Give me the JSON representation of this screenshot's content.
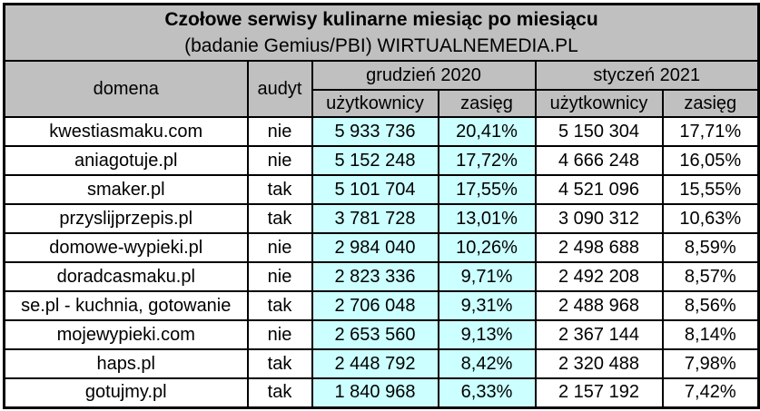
{
  "columns": {
    "domain": "domena",
    "audit": "audyt",
    "group_december": "grudzień 2020",
    "group_january": "styczeń 2021",
    "users": "użytkownicy",
    "reach": "zasięg"
  },
  "colors": {
    "header_bg": "#c0c0c0",
    "december_highlight_bg": "#ccffff",
    "row_bg": "#ffffff",
    "border": "#000000",
    "text": "#000000"
  },
  "chart_data": {
    "type": "table",
    "title": "Czołowe serwisy kulinarne miesiąc po miesiącu",
    "subtitle": "(badanie Gemius/PBI) WIRTUALNEMEDIA.PL",
    "column_headers": [
      "domena",
      "audyt",
      "grudzień 2020 użytkownicy",
      "grudzień 2020 zasięg",
      "styczeń 2021 użytkownicy",
      "styczeń 2021 zasięg"
    ],
    "rows": [
      [
        "kwestiasmaku.com",
        "nie",
        "5 933 736",
        "20,41%",
        "5 150 304",
        "17,71%"
      ],
      [
        "aniagotuje.pl",
        "nie",
        "5 152 248",
        "17,72%",
        "4 666 248",
        "16,05%"
      ],
      [
        "smaker.pl",
        "tak",
        "5 101 704",
        "17,55%",
        "4 521 096",
        "15,55%"
      ],
      [
        "przyslijprzepis.pl",
        "tak",
        "3 781 728",
        "13,01%",
        "3 090 312",
        "10,63%"
      ],
      [
        "domowe-wypieki.pl",
        "nie",
        "2 984 040",
        "10,26%",
        "2 498 688",
        "8,59%"
      ],
      [
        "doradcasmaku.pl",
        "nie",
        "2 823 336",
        "9,71%",
        "2 492 208",
        "8,57%"
      ],
      [
        "se.pl - kuchnia, gotowanie",
        "tak",
        "2 706 048",
        "9,31%",
        "2 488 968",
        "8,56%"
      ],
      [
        "mojewypieki.com",
        "nie",
        "2 653 560",
        "9,13%",
        "2 367 144",
        "8,14%"
      ],
      [
        "haps.pl",
        "tak",
        "2 448 792",
        "8,42%",
        "2 320 488",
        "7,98%"
      ],
      [
        "gotujmy.pl",
        "tak",
        "1 840 968",
        "6,33%",
        "2 157 192",
        "7,42%"
      ]
    ],
    "categories": [
      "kwestiasmaku.com",
      "aniagotuje.pl",
      "smaker.pl",
      "przyslijprzepis.pl",
      "domowe-wypieki.pl",
      "doradcasmaku.pl",
      "se.pl - kuchnia, gotowanie",
      "mojewypieki.com",
      "haps.pl",
      "gotujmy.pl"
    ],
    "audit_flags": [
      "nie",
      "nie",
      "tak",
      "tak",
      "nie",
      "nie",
      "tak",
      "nie",
      "tak",
      "tak"
    ],
    "series": [
      {
        "name": "grudzień 2020 użytkownicy",
        "values": [
          5933736,
          5152248,
          5101704,
          3781728,
          2984040,
          2823336,
          2706048,
          2653560,
          2448792,
          1840968
        ]
      },
      {
        "name": "grudzień 2020 zasięg (%)",
        "values": [
          20.41,
          17.72,
          17.55,
          13.01,
          10.26,
          9.71,
          9.31,
          9.13,
          8.42,
          6.33
        ]
      },
      {
        "name": "styczeń 2021 użytkownicy",
        "values": [
          5150304,
          4666248,
          4521096,
          3090312,
          2498688,
          2492208,
          2488968,
          2367144,
          2320488,
          2157192
        ]
      },
      {
        "name": "styczeń 2021 zasięg (%)",
        "values": [
          17.71,
          16.05,
          15.55,
          10.63,
          8.59,
          8.57,
          8.56,
          8.14,
          7.98,
          7.42
        ]
      }
    ]
  }
}
